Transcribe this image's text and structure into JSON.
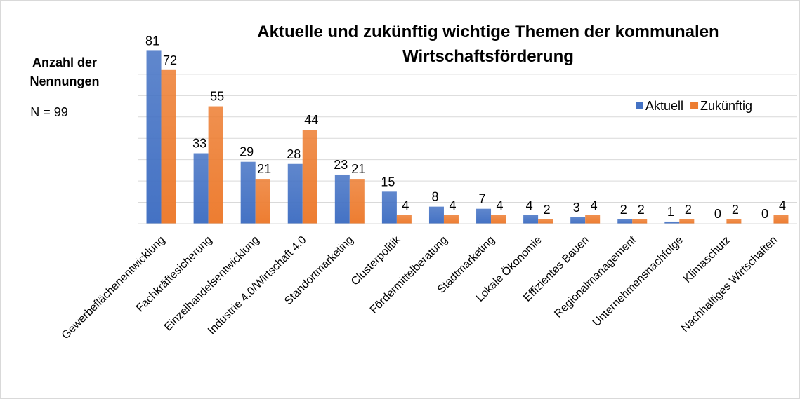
{
  "chart_data": {
    "type": "bar",
    "title_lines": [
      "Aktuelle und zukünftig wichtige Themen der kommunalen",
      "Wirtschaftsförderung"
    ],
    "y_label_lines": [
      "Anzahl der",
      "Nennungen"
    ],
    "annotation": "N = 99",
    "categories": [
      "Gewerbeflächenentwicklung",
      "Fachkräftesicherung",
      "Einzelhandelsentwicklung",
      "Industrie 4.0/Wirtschaft 4.0",
      "Standortmarketing",
      "Clusterpolitik",
      "Fördermittelberatung",
      "Stadtmarketing",
      "Lokale Ökonomie",
      "Effizientes Bauen",
      "Regionalmanagement",
      "Unternehmensnachfolge",
      "Klimaschutz",
      "Nachhaltiges Wirtschaften"
    ],
    "series": [
      {
        "name": "Aktuell",
        "color": "#4472c4",
        "values": [
          81,
          33,
          29,
          28,
          23,
          15,
          8,
          7,
          4,
          3,
          2,
          1,
          0,
          0
        ]
      },
      {
        "name": "Zukünftig",
        "color": "#ed7d31",
        "values": [
          72,
          55,
          21,
          44,
          21,
          4,
          4,
          4,
          2,
          4,
          2,
          2,
          2,
          4
        ]
      }
    ],
    "ylim": [
      0,
      90
    ],
    "yticks": [
      0,
      10,
      20,
      30,
      40,
      50,
      60,
      70,
      80
    ],
    "grid": true,
    "legend": "top-right"
  }
}
